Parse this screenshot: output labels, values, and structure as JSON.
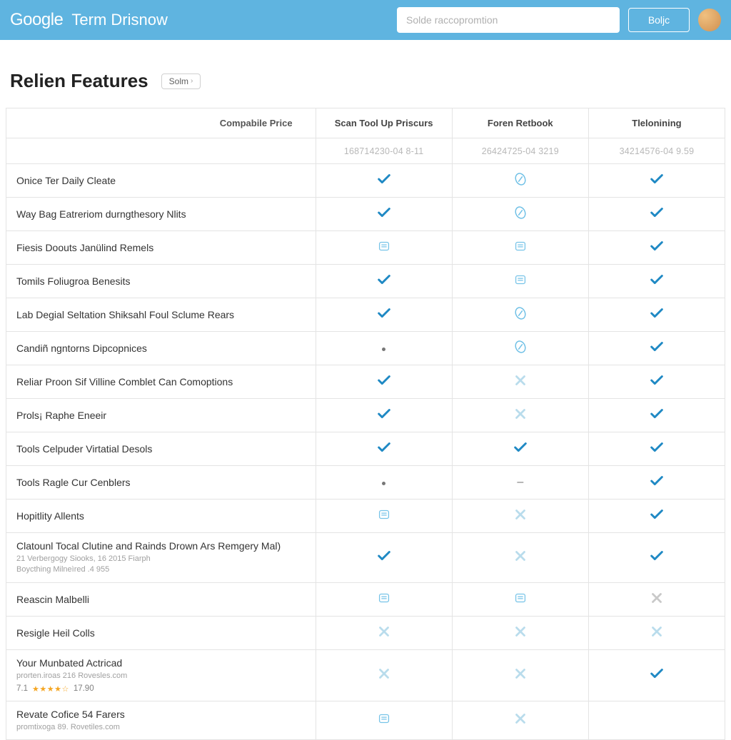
{
  "header": {
    "logo": "Google",
    "product_title": "Term Drisnow",
    "search_placeholder": "Solde raccopromtion",
    "button_label": "Boljc"
  },
  "page": {
    "title": "Relien Features",
    "subtle_button": "Solm"
  },
  "table": {
    "feature_col_header": "Compabile Price",
    "plans": [
      {
        "name": "Scan Tool Up Priscurs",
        "price": "168714230-04 8-11"
      },
      {
        "name": "Foren Retbook",
        "price": "26424725-04 3219"
      },
      {
        "name": "Tlelonining",
        "price": "34214576-04 9.59"
      }
    ],
    "rows": [
      {
        "label": "Onice Ter Daily Cleate",
        "cells": [
          "check",
          "leaf",
          "check"
        ]
      },
      {
        "label": "Way Bag Eatreriom durngthesory Nlits",
        "cells": [
          "check",
          "leaf",
          "check"
        ]
      },
      {
        "label": "Fiesis Doouts Janülind Remels",
        "cells": [
          "box",
          "box",
          "check"
        ]
      },
      {
        "label": "Tomils Foliugroa Benesits",
        "cells": [
          "check",
          "box",
          "check"
        ]
      },
      {
        "label": "Lab Degial Seltation Shiksahl Foul Sclume Rears",
        "cells": [
          "check",
          "leaf",
          "check"
        ]
      },
      {
        "label": "Candiñ ngntorns Dipcopnices",
        "cells": [
          "dot",
          "leaf",
          "check"
        ]
      },
      {
        "label": "Reliar Proon Sif Villine Comblet Can Comoptions",
        "cells": [
          "check",
          "x",
          "check"
        ]
      },
      {
        "label": "Prols¡ Raphe Eneeir",
        "cells": [
          "check",
          "x",
          "check"
        ]
      },
      {
        "label": "Tools Celpuder Virtatial Desols",
        "cells": [
          "check",
          "check",
          "check"
        ]
      },
      {
        "label": "Tools Ragle Cur Cenblers",
        "cells": [
          "dot",
          "dash",
          "check"
        ]
      },
      {
        "label": "Hopitlity Allents",
        "cells": [
          "box",
          "x",
          "check"
        ]
      },
      {
        "label": "Clatounl Tocal Clutine and Rainds Drown Ars Remgery Mal)",
        "sub": "21 Verbergogy Siooks, 16 2015 Fiarph\nBoycthing Milneìred .4 955",
        "cells": [
          "check",
          "x",
          "check"
        ]
      },
      {
        "label": "Reascin Malbelli",
        "cells": [
          "box",
          "box",
          "xg"
        ]
      },
      {
        "label": "Resigle Heil Colls",
        "cells": [
          "x",
          "x",
          "x"
        ]
      },
      {
        "label": "Your Munbated Actricad",
        "sub": "prorten.iroas 216 Rovesles.com",
        "rating": {
          "score": "7.1",
          "stars": "★★★★☆",
          "count": "17.90"
        },
        "cells": [
          "x",
          "x",
          "check"
        ]
      },
      {
        "label": "Revate Cofice 54 Farers",
        "sub": "promtixoga 89. Rovetiles.com",
        "cells": [
          "box",
          "x",
          ""
        ]
      }
    ]
  },
  "colors": {
    "header_bg": "#5fb4e0",
    "check_primary": "#1f89c4",
    "check_secondary": "#4fa8d8",
    "x_light": "#b9dcec",
    "x_gray": "#c9c9c9",
    "outline_icon": "#76c3e8",
    "border": "#e4e4e4",
    "text": "#333333",
    "muted": "#a0a0a0"
  }
}
